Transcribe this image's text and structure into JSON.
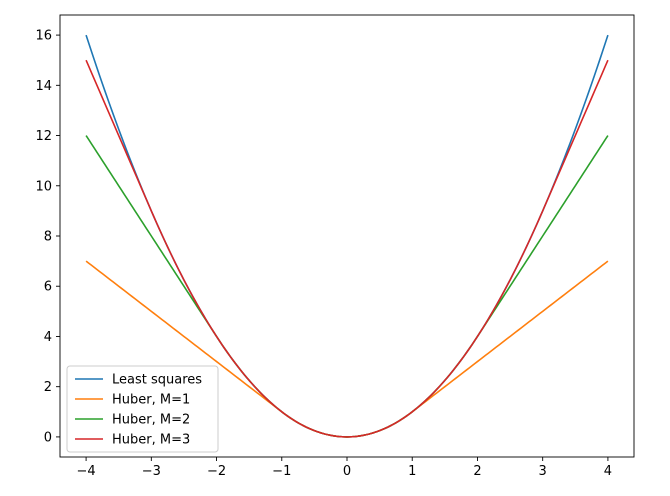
{
  "chart_data": {
    "type": "line",
    "title": "",
    "xlabel": "",
    "ylabel": "",
    "xlim": [
      -4.4,
      4.4
    ],
    "ylim": [
      -0.8,
      16.8
    ],
    "grid": false,
    "legend_position": "lower-left",
    "x_ticks": [
      -4,
      -3,
      -2,
      -1,
      0,
      1,
      2,
      3,
      4
    ],
    "x_tick_labels": [
      "−4",
      "−3",
      "−2",
      "−1",
      "0",
      "1",
      "2",
      "3",
      "4"
    ],
    "y_ticks": [
      0,
      2,
      4,
      6,
      8,
      10,
      12,
      14,
      16
    ],
    "y_tick_labels": [
      "0",
      "2",
      "4",
      "6",
      "8",
      "10",
      "12",
      "14",
      "16"
    ],
    "x": [
      -4,
      -3.5,
      -3,
      -2.5,
      -2,
      -1.5,
      -1,
      -0.5,
      0,
      0.5,
      1,
      1.5,
      2,
      2.5,
      3,
      3.5,
      4
    ],
    "series": [
      {
        "name": "Least squares",
        "color": "#1f77b4",
        "values": [
          16,
          12.25,
          9,
          6.25,
          4,
          2.25,
          1,
          0.25,
          0,
          0.25,
          1,
          2.25,
          4,
          6.25,
          9,
          12.25,
          16
        ]
      },
      {
        "name": "Huber, M=1",
        "color": "#ff7f0e",
        "values": [
          7,
          6,
          5,
          4,
          3,
          2,
          1,
          0.25,
          0,
          0.25,
          1,
          2,
          3,
          4,
          5,
          6,
          7
        ]
      },
      {
        "name": "Huber, M=2",
        "color": "#2ca02c",
        "values": [
          12,
          10,
          8,
          6,
          4,
          2.25,
          1,
          0.25,
          0,
          0.25,
          1,
          2.25,
          4,
          6,
          8,
          10,
          12
        ]
      },
      {
        "name": "Huber, M=3",
        "color": "#d62728",
        "values": [
          15,
          12,
          9,
          6.25,
          4,
          2.25,
          1,
          0.25,
          0,
          0.25,
          1,
          2.25,
          4,
          6.25,
          9,
          12,
          15
        ]
      }
    ]
  }
}
